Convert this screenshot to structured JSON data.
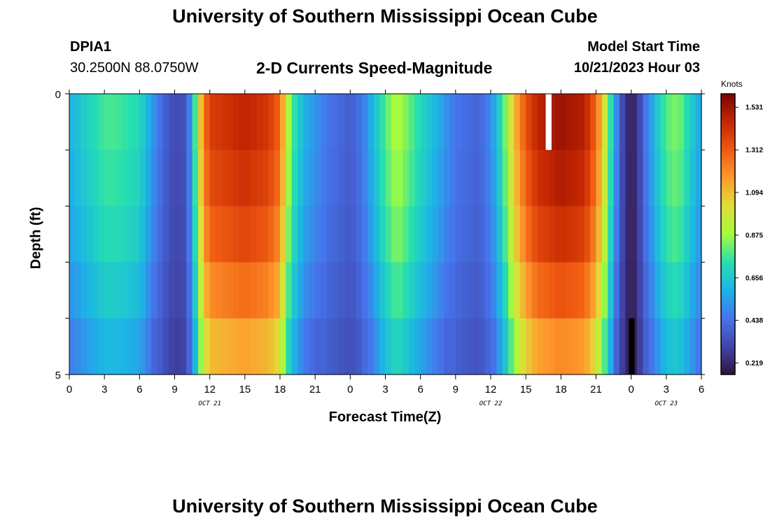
{
  "header": {
    "title": "University of Southern Mississippi Ocean Cube",
    "station": "DPIA1",
    "coords": "30.2500N  88.0750W",
    "subtitle": "2-D Currents Speed-Magnitude",
    "start_label": "Model Start Time",
    "start_value": "10/21/2023 Hour 03"
  },
  "footer": {
    "title": "University of Southern Mississippi Ocean Cube"
  },
  "chart_data": {
    "type": "heatmap",
    "xlabel": "Forecast Time(Z)",
    "ylabel": "Depth (ft)",
    "colorbar_unit": "Knots",
    "colorbar_ticks": [
      "0.219",
      "0.438",
      "0.656",
      "0.875",
      "1.094",
      "1.312",
      "1.531"
    ],
    "colorbar_range": [
      0.16,
      1.6
    ],
    "y_ticks": [
      "0",
      "5"
    ],
    "ylim": [
      0,
      5
    ],
    "x_tick_labels": [
      "0",
      "3",
      "6",
      "9",
      "12",
      "15",
      "18",
      "21",
      "0",
      "3",
      "6",
      "9",
      "12",
      "15",
      "18",
      "21",
      "0",
      "3",
      "6"
    ],
    "date_labels": [
      {
        "hour": 12,
        "text": "OCT 21"
      },
      {
        "hour": 36,
        "text": "OCT 22"
      },
      {
        "hour": 51,
        "text": "OCT 23"
      }
    ],
    "x_start_hour": 0,
    "x_end_hour": 54,
    "depth_rows": 5,
    "profile_hours": [
      0,
      2,
      3,
      4,
      6,
      7,
      8,
      9,
      10,
      10.5,
      11,
      11.5,
      12,
      15,
      17,
      18,
      18.5,
      19,
      20,
      22,
      24,
      25,
      26,
      27,
      28,
      30,
      33,
      35,
      36,
      37,
      38,
      39,
      40,
      42,
      44,
      45,
      46,
      46.5,
      47,
      47.5,
      48,
      48.5,
      49,
      50,
      51,
      52,
      53,
      54
    ],
    "profile_speeds": [
      0.6,
      0.72,
      0.78,
      0.78,
      0.72,
      0.55,
      0.4,
      0.32,
      0.35,
      0.6,
      0.95,
      1.25,
      1.4,
      1.48,
      1.42,
      1.3,
      1.0,
      0.8,
      0.6,
      0.45,
      0.38,
      0.45,
      0.62,
      0.8,
      0.92,
      0.72,
      0.45,
      0.4,
      0.5,
      0.75,
      1.1,
      1.35,
      1.48,
      1.55,
      1.5,
      1.3,
      0.9,
      0.6,
      0.4,
      0.25,
      0.2,
      0.25,
      0.4,
      0.62,
      0.8,
      0.85,
      0.7,
      0.55
    ],
    "depth_factors": [
      1.0,
      0.98,
      0.95,
      0.9,
      0.82,
      0.74
    ],
    "blank_cells": [
      {
        "hour_start": 40.7,
        "hour_end": 41.2,
        "row": 0,
        "color": "#ffffff"
      },
      {
        "hour_start": 47.8,
        "hour_end": 48.3,
        "row": 4,
        "color": "#000000"
      }
    ]
  }
}
